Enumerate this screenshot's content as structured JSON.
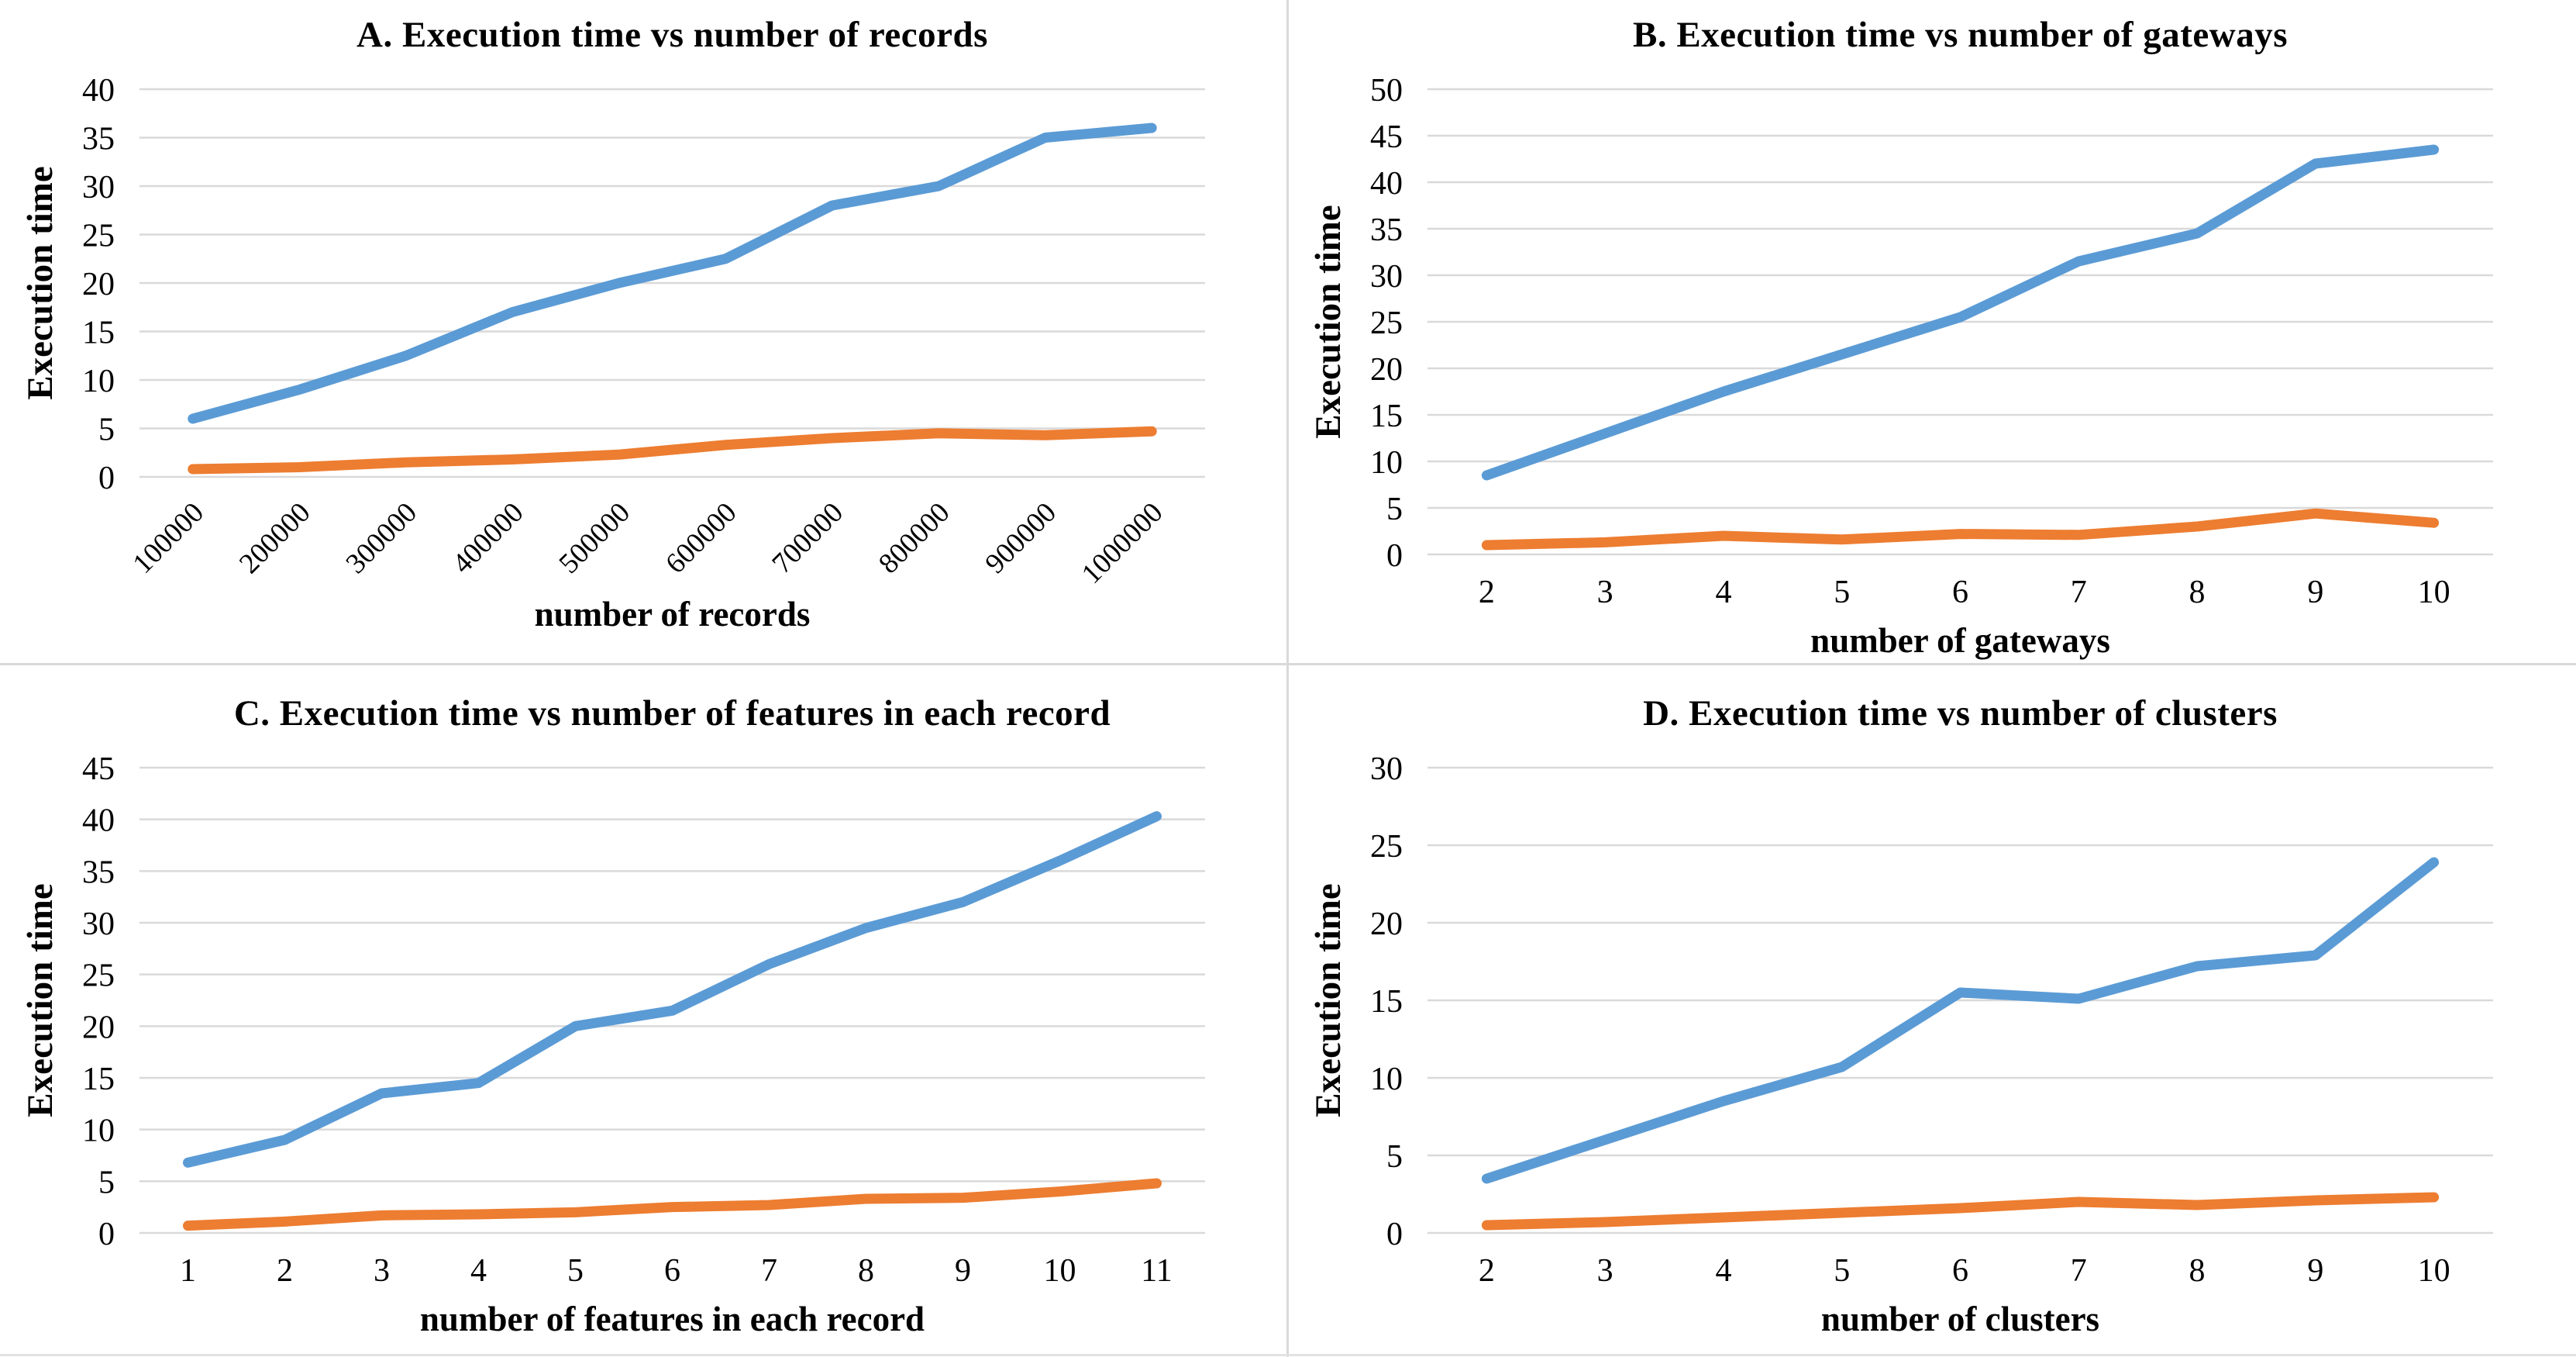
{
  "colors": {
    "series_blue": "#5B9BD5",
    "series_orange": "#ED7D31",
    "gridline": "#D9D9D9",
    "text": "#000000",
    "background": "#FFFFFF"
  },
  "chart_data": [
    {
      "id": "A",
      "type": "line",
      "title": "A. Execution time vs number of records",
      "xlabel": "number of records",
      "ylabel": "Execution time",
      "categories": [
        "100000",
        "200000",
        "300000",
        "400000",
        "500000",
        "600000",
        "700000",
        "800000",
        "900000",
        "1000000"
      ],
      "series": [
        {
          "name": "blue",
          "color": "#5B9BD5",
          "values": [
            6,
            9,
            12.5,
            17,
            20,
            22.5,
            28,
            30,
            35,
            36
          ]
        },
        {
          "name": "orange",
          "color": "#ED7D31",
          "values": [
            0.8,
            1.0,
            1.5,
            1.8,
            2.3,
            3.3,
            4.0,
            4.5,
            4.3,
            4.7
          ]
        }
      ],
      "ylim": [
        0,
        40
      ],
      "ytick_step": 5,
      "rotated_x_labels": true,
      "grid": true,
      "legend": "none"
    },
    {
      "id": "B",
      "type": "line",
      "title": "B. Execution time vs number of gateways",
      "xlabel": "number of gateways",
      "ylabel": "Execution time",
      "categories": [
        "2",
        "3",
        "4",
        "5",
        "6",
        "7",
        "8",
        "9",
        "10"
      ],
      "series": [
        {
          "name": "blue",
          "color": "#5B9BD5",
          "values": [
            8.5,
            13,
            17.5,
            21.5,
            25.5,
            31.5,
            34.5,
            42,
            43.5
          ]
        },
        {
          "name": "orange",
          "color": "#ED7D31",
          "values": [
            1.0,
            1.3,
            2.0,
            1.6,
            2.2,
            2.1,
            3.0,
            4.4,
            3.4
          ]
        }
      ],
      "ylim": [
        0,
        50
      ],
      "ytick_step": 5,
      "rotated_x_labels": false,
      "grid": true,
      "legend": "none"
    },
    {
      "id": "C",
      "type": "line",
      "title": "C. Execution time vs number of features in each record",
      "xlabel": "number of features in each record",
      "ylabel": "Execution time",
      "categories": [
        "1",
        "2",
        "3",
        "4",
        "5",
        "6",
        "7",
        "8",
        "9",
        "10",
        "11"
      ],
      "series": [
        {
          "name": "blue",
          "color": "#5B9BD5",
          "values": [
            6.8,
            9,
            13.5,
            14.5,
            20,
            21.5,
            26,
            29.5,
            32,
            36,
            40.3
          ]
        },
        {
          "name": "orange",
          "color": "#ED7D31",
          "values": [
            0.7,
            1.1,
            1.7,
            1.8,
            2.0,
            2.5,
            2.7,
            3.3,
            3.4,
            4.0,
            4.8
          ]
        }
      ],
      "ylim": [
        0,
        45
      ],
      "ytick_step": 5,
      "rotated_x_labels": false,
      "grid": true,
      "legend": "none"
    },
    {
      "id": "D",
      "type": "line",
      "title": "D. Execution time vs number of clusters",
      "xlabel": "number of clusters",
      "ylabel": "Execution time",
      "categories": [
        "2",
        "3",
        "4",
        "5",
        "6",
        "7",
        "8",
        "9",
        "10"
      ],
      "series": [
        {
          "name": "blue",
          "color": "#5B9BD5",
          "values": [
            3.5,
            6,
            8.5,
            10.7,
            15.5,
            15.1,
            17.2,
            17.9,
            23.9
          ]
        },
        {
          "name": "orange",
          "color": "#ED7D31",
          "values": [
            0.5,
            0.7,
            1.0,
            1.3,
            1.6,
            2.0,
            1.8,
            2.1,
            2.3
          ]
        }
      ],
      "ylim": [
        0,
        30
      ],
      "ytick_step": 5,
      "rotated_x_labels": false,
      "grid": true,
      "legend": "none"
    }
  ]
}
